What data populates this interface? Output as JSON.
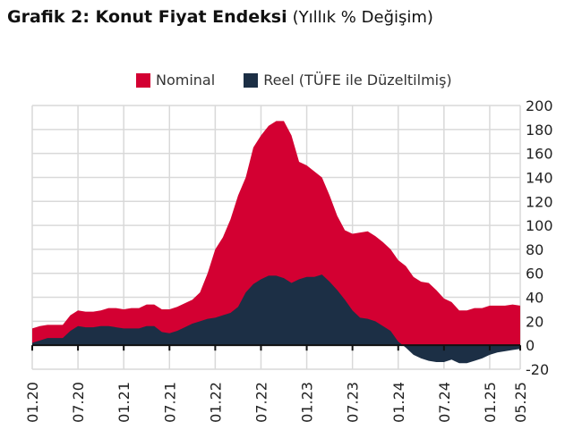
{
  "title": {
    "bold": "Grafik 2: Konut Fiyat Endeksi",
    "sub": "(Yıllık % Değişim)"
  },
  "chart_data": {
    "type": "area",
    "title": "Grafik 2: Konut Fiyat Endeksi (Yıllık % Değişim)",
    "ylim": [
      -20,
      200
    ],
    "yticks": [
      200,
      180,
      160,
      140,
      120,
      100,
      80,
      60,
      40,
      20,
      0,
      -20
    ],
    "y_axis_position": "right",
    "xtick_labels": [
      "01.20",
      "07.20",
      "01.21",
      "07.21",
      "01.22",
      "07.22",
      "01.23",
      "07.23",
      "01.24",
      "07.24",
      "01.25",
      "05.25"
    ],
    "x_start": "01.20",
    "x_end": "05.25",
    "frequency": "monthly",
    "grid": true,
    "legend_position": "top",
    "series": [
      {
        "name": "Nominal",
        "color": "#d30032",
        "values": [
          14,
          16,
          17,
          17,
          17,
          25,
          29,
          28,
          28,
          29,
          31,
          31,
          30,
          31,
          31,
          34,
          34,
          30,
          30,
          32,
          35,
          38,
          44,
          60,
          80,
          90,
          105,
          125,
          140,
          165,
          175,
          183,
          187,
          187,
          175,
          153,
          150,
          145,
          140,
          125,
          108,
          96,
          93,
          94,
          95,
          91,
          86,
          80,
          71,
          66,
          57,
          53,
          52,
          46,
          39,
          36,
          29,
          29,
          31,
          31,
          33,
          33,
          33,
          34,
          33
        ]
      },
      {
        "name": "Reel (TÜFE ile Düzeltilmiş)",
        "color": "#1c2f45",
        "values": [
          2,
          4,
          6,
          6,
          6,
          12,
          16,
          15,
          15,
          16,
          16,
          15,
          14,
          14,
          14,
          16,
          16,
          11,
          10,
          12,
          15,
          18,
          20,
          22,
          23,
          25,
          27,
          32,
          44,
          51,
          55,
          58,
          58,
          56,
          52,
          55,
          57,
          57,
          59,
          53,
          46,
          38,
          29,
          23,
          22,
          20,
          16,
          12,
          3,
          -2,
          -8,
          -11,
          -13,
          -14,
          -14,
          -12,
          -15,
          -15,
          -13,
          -11,
          -8,
          -6,
          -5,
          -4,
          -3
        ]
      }
    ]
  }
}
